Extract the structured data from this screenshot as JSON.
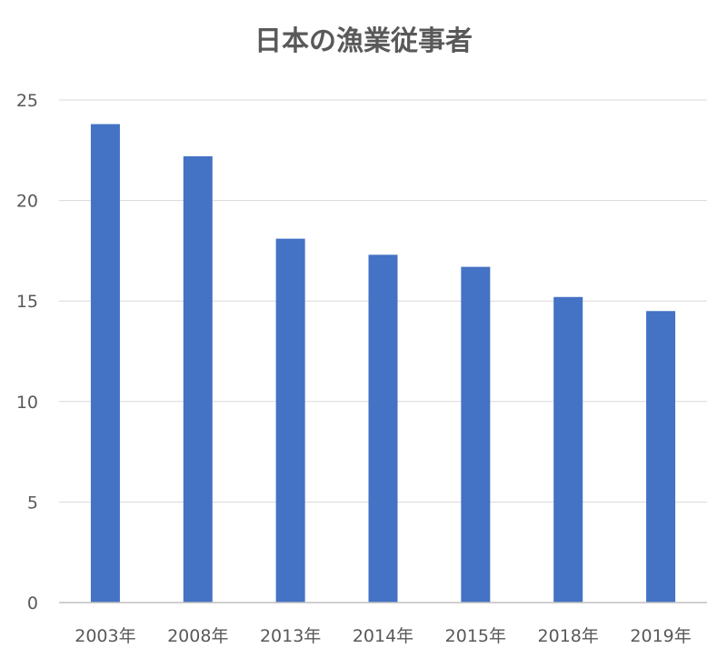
{
  "chart_data": {
    "type": "bar",
    "title": "日本の漁業従事者",
    "xlabel": "",
    "ylabel": "",
    "categories": [
      "2003年",
      "2008年",
      "2013年",
      "2014年",
      "2015年",
      "2018年",
      "2019年"
    ],
    "values": [
      23.8,
      22.2,
      18.1,
      17.3,
      16.7,
      15.2,
      14.5
    ],
    "ylim": [
      0,
      25
    ],
    "yticks": [
      "0",
      "5",
      "10",
      "15",
      "20",
      "25"
    ],
    "grid": true,
    "legend": "none",
    "colors": {
      "bar": "#4472C4",
      "grid": "#D9D9D9",
      "axis": "#BFBFBF",
      "text": "#595959"
    }
  }
}
